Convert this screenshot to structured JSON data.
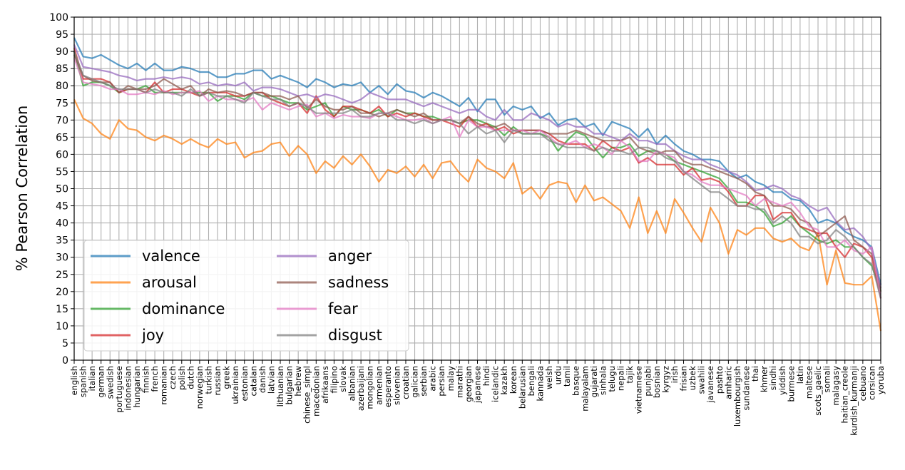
{
  "chart_data": {
    "type": "line",
    "title": "",
    "xlabel": "",
    "ylabel": "% Pearson Correlation",
    "ylim": [
      0,
      100
    ],
    "yticks": [
      0,
      5,
      10,
      15,
      20,
      25,
      30,
      35,
      40,
      45,
      50,
      55,
      60,
      65,
      70,
      75,
      80,
      85,
      90,
      95,
      100
    ],
    "grid": true,
    "legend_position": "lower-left",
    "categories": [
      "english",
      "spanish",
      "italian",
      "german",
      "swedish",
      "portuguese",
      "indonesian",
      "hungarian",
      "finnish",
      "french",
      "romanian",
      "czech",
      "polish",
      "dutch",
      "norwegian",
      "turkish",
      "russian",
      "greek",
      "ukrainian",
      "estonian",
      "catalan",
      "danish",
      "latvian",
      "lithuanian",
      "bulgarian",
      "hebrew",
      "chinese_simpl",
      "macedonian",
      "afrikaans",
      "filipino",
      "slovak",
      "albanian",
      "azerbaijani",
      "mongolian",
      "armenian",
      "esperanto",
      "slovenian",
      "croatian",
      "galician",
      "serbian",
      "arabic",
      "persian",
      "malay",
      "marathi",
      "georgian",
      "japanese",
      "hindi",
      "icelandic",
      "kazakh",
      "korean",
      "belarusian",
      "bengali",
      "kannada",
      "welsh",
      "urdu",
      "tamil",
      "basque",
      "malayalam",
      "gujarati",
      "sinhala",
      "telugu",
      "nepali",
      "tajik",
      "vietnamese",
      "punjabi",
      "bosnian",
      "kyrgyz",
      "irish",
      "frisian",
      "uzbek",
      "swahili",
      "javanese",
      "pashto",
      "amharic",
      "luxembourgish",
      "sundanese",
      "thai",
      "khmer",
      "sindhi",
      "yiddish",
      "burmese",
      "latin",
      "maltese",
      "scots_gaelic",
      "somali",
      "malagasy",
      "haitian_creole",
      "kurdish_kurmanji",
      "cebuano",
      "corsican",
      "yoruba"
    ],
    "series": [
      {
        "name": "valence",
        "color": "#1f77b4",
        "values": [
          94,
          88.5,
          88,
          89,
          87.5,
          86,
          85,
          86.5,
          84.5,
          86.5,
          84.5,
          84.5,
          85.5,
          85,
          84,
          84,
          82.5,
          82.5,
          83.5,
          83.5,
          84.5,
          84.5,
          82,
          83,
          82,
          81,
          79.5,
          82,
          81,
          79.5,
          80.5,
          80,
          81,
          78,
          80,
          77.5,
          80.5,
          78.5,
          78,
          76.5,
          78,
          77,
          75.5,
          74,
          76.5,
          72.5,
          76,
          76,
          71.5,
          74,
          73,
          74,
          70.5,
          72,
          68.5,
          70,
          70.5,
          68,
          69,
          65.5,
          69.5,
          68.5,
          67.5,
          65,
          67.5,
          63,
          65.5,
          63,
          61,
          60,
          58.5,
          58.5,
          58,
          55,
          53,
          54,
          52,
          51,
          49,
          49,
          47,
          46.5,
          44,
          40,
          41,
          40,
          37.5,
          36,
          35,
          33,
          22
        ]
      },
      {
        "name": "arousal",
        "color": "#ff7f0e",
        "values": [
          76,
          70.5,
          69,
          66,
          64.5,
          70,
          67.5,
          67,
          65,
          64,
          65.5,
          64.5,
          63,
          64.5,
          63,
          62,
          64.5,
          63,
          63.5,
          59,
          60.5,
          61,
          63,
          63.5,
          59.5,
          62.5,
          60,
          54.5,
          58,
          56,
          59.5,
          57,
          60,
          56.5,
          52,
          55.5,
          54.5,
          56.5,
          53.5,
          57,
          53,
          57.5,
          58,
          54.5,
          52,
          58.5,
          56,
          55,
          53,
          57.5,
          48.5,
          50.5,
          47,
          51,
          52,
          51.5,
          46,
          51,
          46.5,
          47.5,
          45.5,
          43.5,
          38.5,
          47.5,
          37,
          43.5,
          37,
          47,
          43,
          38.5,
          34.5,
          44.5,
          40,
          31,
          38,
          36.5,
          38.5,
          38.5,
          35.5,
          34.5,
          35.5,
          33,
          32,
          37,
          22,
          32,
          22.5,
          22,
          22,
          24.5,
          8.5
        ]
      },
      {
        "name": "dominance",
        "color": "#2ca02c",
        "values": [
          90,
          80,
          81,
          81,
          80,
          78,
          79,
          79,
          80,
          78,
          78,
          78,
          78,
          78,
          78,
          78,
          75.5,
          77,
          77,
          76,
          78,
          77,
          77,
          76,
          75,
          75,
          73,
          74,
          75,
          71,
          74,
          73,
          73,
          72,
          73,
          71,
          73,
          72,
          72,
          71,
          71,
          70,
          70,
          69,
          70,
          70,
          69,
          68,
          65.5,
          68,
          66,
          66,
          66,
          65,
          61,
          64,
          66.5,
          65.5,
          62,
          59,
          62,
          62,
          63,
          59.5,
          61,
          61,
          60,
          58,
          57,
          56,
          55,
          54,
          53,
          50,
          46,
          46,
          45,
          43,
          39,
          40,
          42,
          39,
          37,
          35,
          34,
          35,
          33,
          33,
          30,
          27.5,
          20
        ]
      },
      {
        "name": "joy",
        "color": "#d62728",
        "values": [
          91,
          82,
          82,
          82,
          81,
          78,
          79,
          79,
          78,
          81,
          78,
          79,
          79,
          78,
          77,
          78,
          78,
          78,
          77,
          77,
          78,
          78,
          76,
          75,
          74,
          75,
          72,
          77,
          73,
          71,
          74,
          74,
          73,
          72,
          74,
          71,
          72,
          71,
          72,
          71,
          70,
          70,
          69,
          68,
          71,
          68,
          69,
          67,
          68,
          66,
          67,
          67,
          67,
          66,
          64,
          63,
          63,
          63,
          61,
          64,
          62,
          61,
          62,
          57.5,
          59,
          57,
          57,
          57,
          54,
          56,
          52.5,
          53,
          52,
          49,
          45,
          45,
          48,
          48,
          41,
          43,
          43,
          39,
          38,
          37,
          37,
          33,
          30,
          34,
          33,
          30,
          18
        ]
      },
      {
        "name": "anger",
        "color": "#9467bd",
        "values": [
          92,
          85.5,
          85,
          84.5,
          84,
          83,
          82.5,
          81.5,
          82,
          82,
          82.5,
          82,
          82.5,
          82,
          80.5,
          81,
          80,
          80.5,
          80,
          81,
          78.5,
          79.5,
          79.5,
          79,
          78,
          77,
          77.5,
          76.5,
          77.5,
          77,
          76,
          75,
          76,
          78,
          77,
          76,
          76,
          76,
          75,
          74,
          75,
          74,
          73,
          72,
          73,
          73,
          71,
          70,
          73,
          70,
          70,
          72,
          71,
          70,
          68,
          69,
          68,
          68,
          66,
          66,
          65,
          64,
          66,
          64,
          64,
          63,
          63,
          61,
          59.5,
          58.5,
          58.5,
          57,
          56,
          55,
          54,
          52,
          49.5,
          50,
          51,
          50,
          48,
          47,
          45,
          43.5,
          44.5,
          40.5,
          38,
          38.5,
          36,
          32,
          21
        ]
      },
      {
        "name": "sadness",
        "color": "#8c564b",
        "values": [
          89,
          83,
          81.5,
          81,
          81,
          78,
          80,
          79,
          79,
          80,
          82,
          80.5,
          79,
          80,
          77,
          79,
          78,
          78.5,
          78,
          77,
          78,
          78,
          77,
          77,
          76,
          77,
          73.5,
          76,
          74,
          73,
          73,
          74,
          72,
          72,
          71,
          72,
          73,
          72,
          71,
          72,
          70,
          70,
          70,
          69,
          71,
          69,
          68,
          68,
          69,
          67,
          67,
          67,
          67,
          66,
          66,
          66,
          67,
          66,
          65,
          64,
          64,
          64,
          65,
          62,
          61,
          60,
          61,
          61,
          58,
          57,
          57,
          56,
          55,
          54,
          53,
          51.5,
          49,
          48,
          45,
          45,
          44,
          41,
          40,
          36,
          38,
          40,
          42,
          35,
          33,
          31,
          20
        ]
      },
      {
        "name": "fear",
        "color": "#e377c2",
        "values": [
          88,
          81,
          80.5,
          80,
          79,
          79,
          77.5,
          77.5,
          78,
          77.5,
          78.5,
          77.5,
          78,
          78,
          78.5,
          75.5,
          77,
          76,
          76,
          75.5,
          76.5,
          73,
          75,
          74,
          73,
          74,
          74.5,
          71,
          72,
          70.5,
          71.5,
          71,
          71,
          70.5,
          72,
          72,
          71,
          70,
          70,
          70.5,
          69,
          70,
          71,
          65,
          70,
          68,
          68,
          67,
          67,
          67,
          67,
          66,
          67,
          65,
          63,
          63,
          64,
          62,
          63,
          62,
          60,
          64,
          62,
          58,
          58,
          61,
          60,
          59,
          55,
          54,
          52,
          51,
          51,
          50,
          49,
          48,
          45,
          47,
          46,
          45,
          46,
          43,
          39,
          38,
          33,
          33,
          35,
          32,
          31,
          33,
          18
        ]
      },
      {
        "name": "disgust",
        "color": "#7f7f7f",
        "values": [
          90,
          83,
          82,
          81,
          80,
          79,
          79,
          79,
          78,
          79,
          78,
          78,
          77,
          79,
          77,
          78,
          77,
          77,
          76,
          75,
          78,
          77,
          76,
          76,
          74,
          75,
          74,
          72,
          72,
          72,
          72,
          73,
          71,
          71,
          72,
          72,
          70,
          70,
          69,
          70,
          69,
          70,
          70,
          69,
          66,
          68,
          66,
          67,
          63.5,
          67,
          66,
          66,
          66,
          64,
          63,
          62,
          62,
          62,
          61,
          62,
          61,
          61,
          60,
          62,
          62,
          61,
          59,
          58,
          55,
          53,
          51,
          49,
          49,
          47,
          45,
          45,
          44,
          44,
          40,
          42,
          40,
          36,
          36,
          34,
          35,
          38,
          36,
          33,
          30,
          28,
          18
        ]
      }
    ]
  }
}
